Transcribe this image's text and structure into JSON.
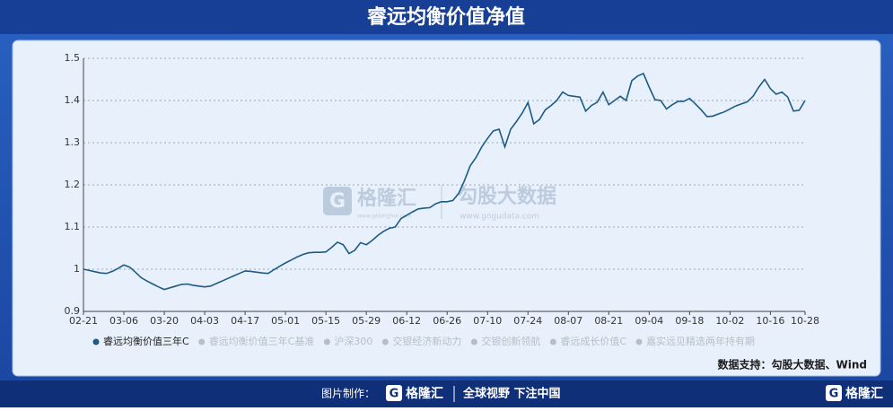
{
  "chart_data": {
    "type": "line",
    "title": "睿远均衡价值净值",
    "categories": [
      "02-21",
      null,
      null,
      null,
      null,
      null,
      null,
      "03-06",
      null,
      null,
      null,
      null,
      null,
      null,
      "03-20",
      null,
      null,
      null,
      null,
      null,
      null,
      "04-03",
      null,
      null,
      null,
      null,
      null,
      null,
      "04-17",
      null,
      null,
      null,
      null,
      null,
      null,
      "05-01",
      null,
      null,
      null,
      null,
      null,
      null,
      "05-15",
      null,
      null,
      null,
      null,
      null,
      null,
      "05-29",
      null,
      null,
      null,
      null,
      null,
      null,
      "06-12",
      null,
      null,
      null,
      null,
      null,
      null,
      "06-26",
      null,
      null,
      null,
      null,
      null,
      null,
      "07-10",
      null,
      null,
      null,
      null,
      null,
      null,
      "07-24",
      null,
      null,
      null,
      null,
      null,
      null,
      "08-07",
      null,
      null,
      null,
      null,
      null,
      null,
      "08-21",
      null,
      null,
      null,
      null,
      null,
      null,
      "09-04",
      null,
      null,
      null,
      null,
      null,
      null,
      "09-18",
      null,
      null,
      null,
      null,
      null,
      null,
      "10-02",
      null,
      null,
      null,
      null,
      null,
      null,
      "10-16",
      null,
      null,
      null,
      null,
      null,
      "10-28"
    ],
    "series": [
      {
        "name": "睿远均衡价值三年C",
        "color": "#1d5a85",
        "values": [
          1.0,
          0.997,
          0.994,
          0.991,
          0.99,
          0.995,
          1.002,
          1.01,
          1.005,
          0.993,
          0.98,
          0.972,
          0.965,
          0.958,
          0.952,
          0.956,
          0.96,
          0.964,
          0.965,
          0.962,
          0.96,
          0.958,
          0.96,
          0.966,
          0.972,
          0.978,
          0.984,
          0.99,
          0.996,
          0.995,
          0.993,
          0.991,
          0.99,
          0.999,
          1.007,
          1.015,
          1.022,
          1.029,
          1.035,
          1.039,
          1.04,
          1.04,
          1.041,
          1.052,
          1.064,
          1.058,
          1.037,
          1.045,
          1.063,
          1.058,
          1.068,
          1.08,
          1.09,
          1.097,
          1.1,
          1.12,
          1.128,
          1.136,
          1.143,
          1.145,
          1.146,
          1.155,
          1.16,
          1.16,
          1.163,
          1.18,
          1.21,
          1.245,
          1.265,
          1.29,
          1.31,
          1.328,
          1.332,
          1.29,
          1.332,
          1.35,
          1.37,
          1.395,
          1.345,
          1.355,
          1.378,
          1.388,
          1.4,
          1.42,
          1.412,
          1.41,
          1.408,
          1.375,
          1.388,
          1.396,
          1.42,
          1.39,
          1.4,
          1.41,
          1.4,
          1.447,
          1.458,
          1.464,
          1.432,
          1.402,
          1.4,
          1.38,
          1.39,
          1.398,
          1.398,
          1.405,
          1.392,
          1.378,
          1.362,
          1.363,
          1.368,
          1.373,
          1.38,
          1.387,
          1.392,
          1.397,
          1.41,
          1.432,
          1.45,
          1.428,
          1.415,
          1.42,
          1.408,
          1.375,
          1.377,
          1.4
        ]
      }
    ],
    "inactive_legend": [
      {
        "name": "睿远均衡价值三年C基准",
        "color": "#b9bec6"
      },
      {
        "name": "沪深300",
        "color": "#b9bec6"
      },
      {
        "name": "交银经济新动力",
        "color": "#b9bec6"
      },
      {
        "name": "交银创新领航",
        "color": "#b9bec6"
      },
      {
        "name": "睿远成长价值C",
        "color": "#b9bec6"
      },
      {
        "name": "嘉实远见精选两年持有期",
        "color": "#b9bec6"
      }
    ],
    "ylim": [
      0.9,
      1.5
    ],
    "yticks": [
      0.9,
      1,
      1.1,
      1.2,
      1.3,
      1.4,
      1.5
    ],
    "grid": true,
    "source": "数据支持：勾股大数据、Wind",
    "watermark": {
      "brand": "格隆汇",
      "brand_url": "www.gelonghui.com",
      "data_brand": "勾股大数据",
      "data_url": "www.gogudata.com"
    }
  },
  "footer": {
    "made_by": "图片制作：",
    "brand": "格隆汇",
    "slogan": "全球视野 下注中国",
    "corner_brand": "格隆汇"
  }
}
